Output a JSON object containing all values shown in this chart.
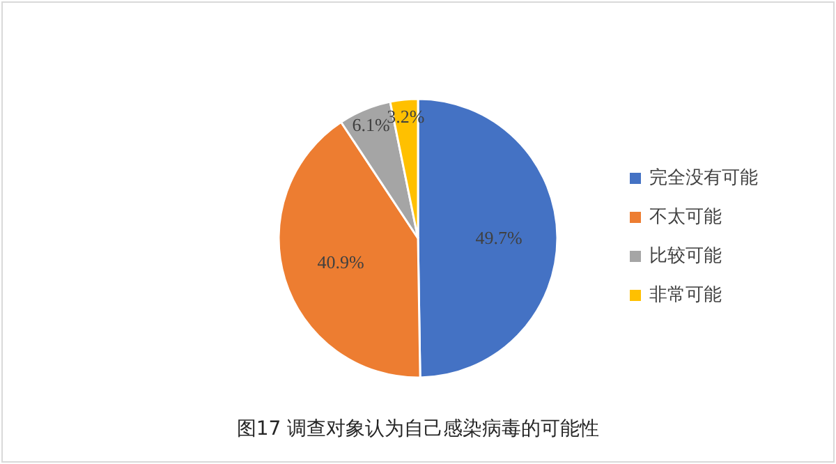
{
  "chart_data": {
    "type": "pie",
    "title": "图17 调查对象认为自己感染病毒的可能性",
    "categories": [
      "完全没有可能",
      "不太可能",
      "比较可能",
      "非常可能"
    ],
    "values": [
      49.7,
      40.9,
      6.1,
      3.2
    ],
    "colors": [
      "#4472c4",
      "#ed7d31",
      "#a5a5a5",
      "#ffc000"
    ],
    "value_labels": [
      "49.7%",
      "40.9%",
      "6.1%",
      "3.2%"
    ],
    "legend": "right"
  }
}
